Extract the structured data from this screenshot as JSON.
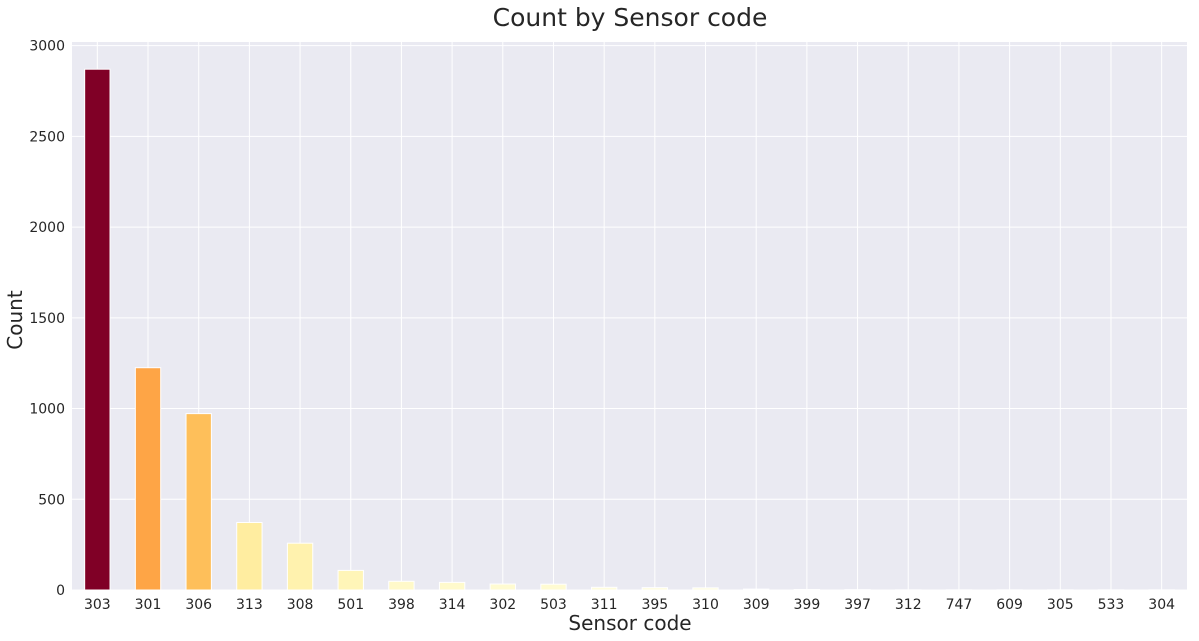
{
  "chart_data": {
    "type": "bar",
    "title": "Count by Sensor code",
    "xlabel": "Sensor code",
    "ylabel": "Count",
    "categories": [
      "303",
      "301",
      "306",
      "313",
      "308",
      "501",
      "398",
      "314",
      "302",
      "503",
      "311",
      "395",
      "310",
      "309",
      "399",
      "397",
      "312",
      "747",
      "609",
      "305",
      "533",
      "304"
    ],
    "values": [
      2870,
      1225,
      972,
      372,
      258,
      108,
      48,
      42,
      33,
      32,
      15,
      13,
      12,
      5,
      3,
      2,
      1,
      1,
      1,
      1,
      1,
      1
    ],
    "ylim": [
      0,
      3020
    ],
    "yticks": [
      0,
      500,
      1000,
      1500,
      2000,
      2500,
      3000
    ],
    "grid": true,
    "legend": "none",
    "colors": [
      "#800026",
      "#fea546",
      "#febf5a",
      "#ffeda0",
      "#fff2ae",
      "#fff5b8",
      "#fff9c9",
      "#fffacc",
      "#fffbd1",
      "#fffbd2",
      "#fffdde",
      "#fffddf",
      "#fffde0",
      "#fffee4",
      "#fffee6",
      "#fffee7",
      "#ffffe8",
      "#ffffe8",
      "#ffffe8",
      "#ffffe8",
      "#ffffe8",
      "#ffffe8"
    ],
    "background": "#eaeaf2",
    "grid_color": "#ffffff"
  }
}
